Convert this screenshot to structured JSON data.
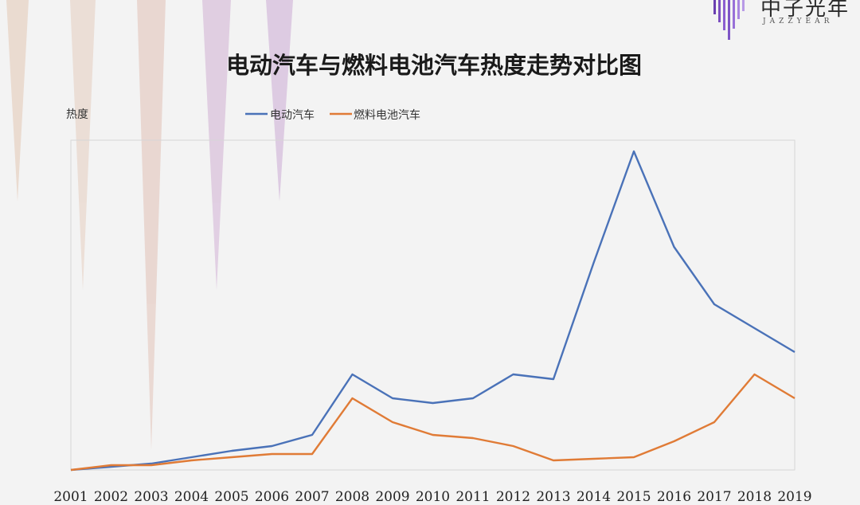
{
  "brand": {
    "name": "中子光年",
    "sub": "JAZZYEAR"
  },
  "colors": {
    "background": "#f3f3f3",
    "ev_line": "#4a72b8",
    "fcv_line": "#e07b36",
    "deco_peach": "#e7d2c7",
    "deco_lilac": "#d9c2dd"
  },
  "chart_data": {
    "type": "line",
    "title": "电动汽车与燃料电池汽车热度走势对比图",
    "ylabel": "热度",
    "xlabel": "",
    "legend_position": "top-center",
    "grid": false,
    "ylim": [
      0,
      100
    ],
    "categories": [
      "2001",
      "2002",
      "2003",
      "2004",
      "2005",
      "2006",
      "2007",
      "2008",
      "2009",
      "2010",
      "2011",
      "2012",
      "2013",
      "2014",
      "2015",
      "2016",
      "2017",
      "2018",
      "2019"
    ],
    "series": [
      {
        "name": "电动汽车",
        "color": "#4a72b8",
        "values": [
          0,
          1,
          2,
          4,
          6,
          7.5,
          11,
          30,
          22.5,
          21,
          22.5,
          30,
          28.5,
          65,
          100,
          70,
          52,
          44.5,
          37
        ]
      },
      {
        "name": "燃料电池汽车",
        "color": "#e07b36",
        "values": [
          0,
          1.5,
          1.5,
          3,
          4,
          5,
          5,
          22.5,
          15,
          11,
          10,
          7.5,
          3,
          3.5,
          4,
          9,
          15,
          30,
          22.5
        ]
      }
    ]
  }
}
